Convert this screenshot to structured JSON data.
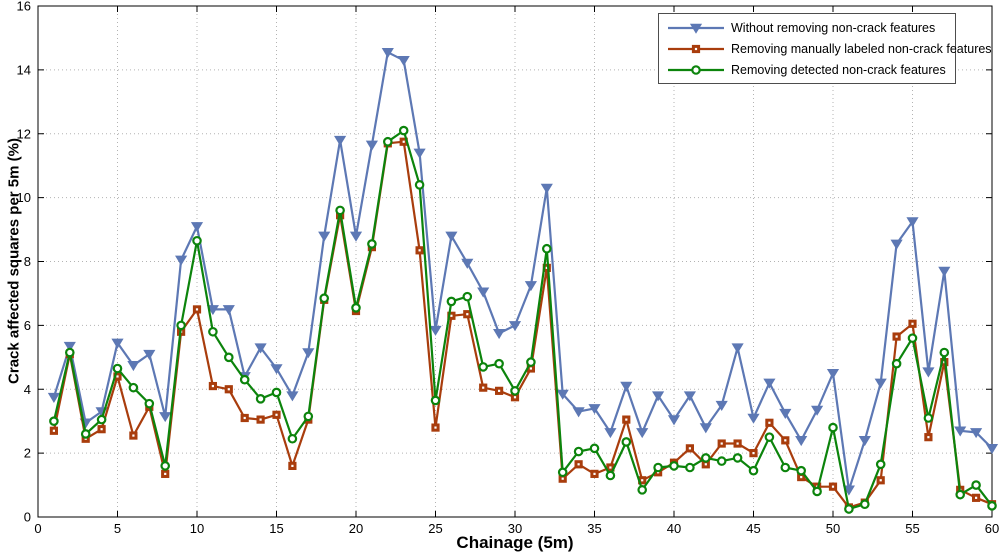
{
  "chart_data": {
    "type": "line",
    "title": "",
    "xlabel": "Chainage (5m)",
    "ylabel": "Crack affected squares per 5m (%)",
    "xlim": [
      0,
      60
    ],
    "ylim": [
      0,
      16
    ],
    "xticks": [
      0,
      5,
      10,
      15,
      20,
      25,
      30,
      35,
      40,
      45,
      50,
      55,
      60
    ],
    "yticks": [
      0,
      2,
      4,
      6,
      8,
      10,
      12,
      14,
      16
    ],
    "grid": "dotted",
    "grid_color": "#b3b3b3",
    "axis_color": "#000000",
    "legend_position": "top-right",
    "x": [
      1,
      2,
      3,
      4,
      5,
      6,
      7,
      8,
      9,
      10,
      11,
      12,
      13,
      14,
      15,
      16,
      17,
      18,
      19,
      20,
      21,
      22,
      23,
      24,
      25,
      26,
      27,
      28,
      29,
      30,
      31,
      32,
      33,
      34,
      35,
      36,
      37,
      38,
      39,
      40,
      41,
      42,
      43,
      44,
      45,
      46,
      47,
      48,
      49,
      50,
      51,
      52,
      53,
      54,
      55,
      56,
      57,
      58,
      59,
      60
    ],
    "series": [
      {
        "name": "Without removing non-crack features",
        "color": "#5d78b4",
        "marker": "triangle-down",
        "values": [
          3.75,
          5.35,
          2.95,
          3.3,
          5.45,
          4.75,
          5.1,
          3.15,
          8.05,
          9.1,
          6.5,
          6.5,
          4.4,
          5.3,
          4.65,
          3.8,
          5.15,
          8.8,
          11.8,
          8.8,
          11.65,
          14.55,
          14.3,
          11.4,
          5.85,
          8.8,
          7.95,
          7.05,
          5.75,
          6.0,
          7.25,
          10.3,
          3.85,
          3.3,
          3.4,
          2.65,
          4.1,
          2.65,
          3.8,
          3.05,
          3.8,
          2.8,
          3.5,
          5.3,
          3.1,
          4.2,
          3.25,
          2.4,
          3.35,
          4.5,
          0.85,
          2.4,
          4.2,
          8.55,
          9.25,
          4.55,
          7.7,
          2.7,
          2.65,
          2.15
        ]
      },
      {
        "name": "Removing manually labeled non-crack features",
        "color": "#a93d0d",
        "marker": "square",
        "values": [
          2.7,
          5.1,
          2.45,
          2.75,
          4.4,
          2.55,
          3.45,
          1.35,
          5.8,
          6.5,
          4.1,
          4.0,
          3.1,
          3.05,
          3.2,
          1.6,
          3.05,
          6.8,
          9.45,
          6.45,
          8.45,
          11.7,
          11.75,
          8.35,
          2.8,
          6.3,
          6.35,
          4.05,
          3.95,
          3.75,
          4.65,
          7.8,
          1.2,
          1.65,
          1.35,
          1.55,
          3.05,
          1.15,
          1.4,
          1.7,
          2.15,
          1.65,
          2.3,
          2.3,
          2.0,
          2.95,
          2.4,
          1.25,
          0.95,
          0.95,
          0.3,
          0.45,
          1.15,
          5.65,
          6.05,
          2.5,
          4.85,
          0.85,
          0.6,
          0.4
        ]
      },
      {
        "name": "Removing detected non-crack features",
        "color": "#0c840c",
        "marker": "circle",
        "values": [
          3.0,
          5.15,
          2.6,
          3.05,
          4.65,
          4.05,
          3.55,
          1.6,
          6.0,
          8.65,
          5.8,
          5.0,
          4.3,
          3.7,
          3.9,
          2.45,
          3.15,
          6.85,
          9.6,
          6.55,
          8.55,
          11.75,
          12.1,
          10.4,
          3.65,
          6.75,
          6.9,
          4.7,
          4.8,
          3.95,
          4.85,
          8.4,
          1.4,
          2.05,
          2.15,
          1.3,
          2.35,
          0.85,
          1.55,
          1.6,
          1.55,
          1.85,
          1.75,
          1.85,
          1.45,
          2.5,
          1.55,
          1.45,
          0.8,
          2.8,
          0.25,
          0.4,
          1.65,
          4.8,
          5.6,
          3.1,
          5.15,
          0.7,
          1.0,
          0.35
        ]
      }
    ]
  }
}
